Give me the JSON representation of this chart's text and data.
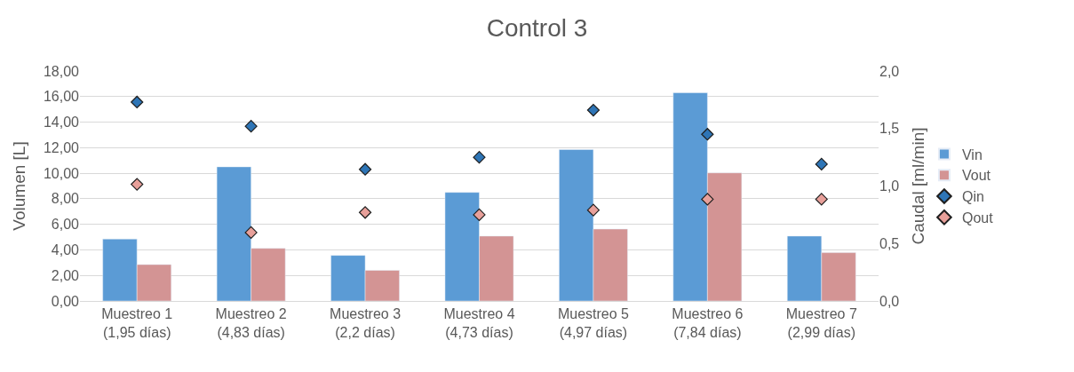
{
  "chart_data": {
    "type": "bar",
    "title": "Control 3",
    "ylabel": "Volumen [L]",
    "y2label": "Caudal [ml/min]",
    "categories": [
      "Muestreo 1\n(1,95 días)",
      "Muestreo 2\n(4,83 días)",
      "Muestreo 3\n(2,2 días)",
      "Muestreo 4\n(4,73 días)",
      "Muestreo 5\n(4,97 días)",
      "Muestreo 6\n(7,84 días)",
      "Muestreo 7\n(2,99 días)"
    ],
    "series": [
      {
        "name": "Vin",
        "color": "#5b9bd5",
        "values": [
          4.85,
          10.5,
          3.57,
          8.5,
          11.85,
          16.3,
          5.08
        ]
      },
      {
        "name": "Vout",
        "color": "#d39494",
        "values": [
          2.85,
          4.12,
          2.4,
          5.08,
          5.63,
          10.03,
          3.78
        ]
      },
      {
        "name": "Qin",
        "type": "scatter",
        "axis": "y2",
        "marker": "diamond",
        "color": "#2e75b6",
        "values": [
          1.73,
          1.52,
          1.145,
          1.25,
          1.66,
          1.45,
          1.19
        ]
      },
      {
        "name": "Qout",
        "type": "scatter",
        "axis": "y2",
        "marker": "diamond",
        "color": "#e8a09a",
        "values": [
          1.015,
          0.595,
          0.77,
          0.75,
          0.79,
          0.885,
          0.885
        ]
      }
    ],
    "ylim": [
      0,
      18
    ],
    "yticks": [
      {
        "value": 0,
        "label": "0,00"
      },
      {
        "value": 2,
        "label": "2,00"
      },
      {
        "value": 4,
        "label": "4,00"
      },
      {
        "value": 6,
        "label": "6,00"
      },
      {
        "value": 8,
        "label": "8,00"
      },
      {
        "value": 10,
        "label": "10,00"
      },
      {
        "value": 12,
        "label": "12,00"
      },
      {
        "value": 14,
        "label": "14,00"
      },
      {
        "value": 16,
        "label": "16,00"
      },
      {
        "value": 18,
        "label": "18,00"
      }
    ],
    "y2lim": [
      0,
      2
    ],
    "y2ticks": [
      {
        "value": 0,
        "label": "0,0"
      },
      {
        "value": 0.5,
        "label": "0,5"
      },
      {
        "value": 1,
        "label": "1,0"
      },
      {
        "value": 1.5,
        "label": "1,5"
      },
      {
        "value": 2,
        "label": "2,0"
      }
    ],
    "grid": "y",
    "legend": "right"
  }
}
